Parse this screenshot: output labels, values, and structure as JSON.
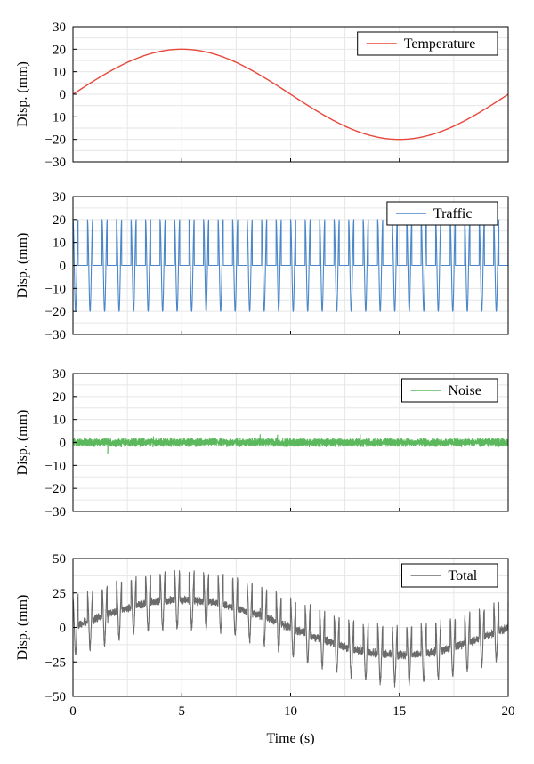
{
  "colors": {
    "temperature": "#e8473c",
    "traffic": "#4a86c8",
    "noise": "#5cb85c",
    "total": "#6b6b6b",
    "grid": "#e6e6e6",
    "axis": "#000000"
  },
  "chart_data": [
    {
      "type": "line",
      "title": "",
      "xlabel": "",
      "ylabel": "Disp. (mm)",
      "xlim": [
        0,
        20
      ],
      "ylim": [
        -30,
        30
      ],
      "xticks": [
        0,
        5,
        10,
        15,
        20
      ],
      "yticks": [
        -30,
        -20,
        -10,
        0,
        10,
        20,
        30
      ],
      "show_x_ticklabels": false,
      "grid": true,
      "legend": "top-right",
      "series": [
        {
          "name": "Temperature",
          "color_key": "temperature",
          "x": [
            0,
            1,
            2,
            3,
            4,
            5,
            6,
            7,
            8,
            9,
            10,
            11,
            12,
            13,
            14,
            15,
            16,
            17,
            18,
            19,
            20
          ],
          "y": [
            0,
            6.2,
            11.8,
            16.2,
            19.0,
            20.0,
            19.0,
            16.2,
            11.8,
            6.2,
            0,
            -6.2,
            -11.8,
            -16.2,
            -19.0,
            -20.0,
            -19.0,
            -16.2,
            -11.8,
            -6.2,
            0
          ]
        }
      ]
    },
    {
      "type": "line",
      "title": "",
      "xlabel": "",
      "ylabel": "Disp. (mm)",
      "xlim": [
        0,
        20
      ],
      "ylim": [
        -30,
        30
      ],
      "xticks": [
        0,
        5,
        10,
        15,
        20
      ],
      "yticks": [
        -30,
        -20,
        -10,
        0,
        10,
        20,
        30
      ],
      "show_x_ticklabels": false,
      "grid": true,
      "legend": "top-right",
      "series": [
        {
          "name": "Traffic",
          "color_key": "traffic",
          "x": [
            0,
            0.17,
            0.33,
            0.5,
            0.67,
            0.83,
            1.0,
            1.17,
            1.33,
            1.5,
            1.67,
            1.83,
            2.0
          ],
          "y": [
            20,
            0,
            -20,
            0,
            0,
            20,
            0,
            -20,
            0,
            0,
            20,
            0,
            -20
          ],
          "pattern": "period ~0.67 s, 30 cycles over 0-20 s, amplitude 20 mm with flat segments at 0"
        }
      ]
    },
    {
      "type": "line",
      "title": "",
      "xlabel": "",
      "ylabel": "Disp. (mm)",
      "xlim": [
        0,
        20
      ],
      "ylim": [
        -30,
        30
      ],
      "xticks": [
        0,
        5,
        10,
        15,
        20
      ],
      "yticks": [
        -30,
        -20,
        -10,
        0,
        10,
        20,
        30
      ],
      "show_x_ticklabels": false,
      "grid": true,
      "legend": "top-right",
      "series": [
        {
          "name": "Noise",
          "color_key": "noise",
          "x": [
            0,
            1,
            1.6,
            2,
            3,
            4,
            5,
            6,
            7,
            8,
            8.6,
            9,
            10,
            11,
            12,
            13,
            13.2,
            14,
            15,
            16,
            17,
            18,
            19,
            20
          ],
          "y": [
            1,
            -1,
            -5,
            1,
            -1,
            1,
            -1,
            1,
            0,
            1,
            3,
            -1,
            1,
            -1,
            0,
            1,
            3,
            -1,
            0,
            1,
            -1,
            1,
            0,
            1
          ],
          "pattern": "random noise, amplitude about ±3 mm"
        }
      ]
    },
    {
      "type": "line",
      "title": "",
      "xlabel": "Time (s)",
      "ylabel": "Disp. (mm)",
      "xlim": [
        0,
        20
      ],
      "ylim": [
        -50,
        50
      ],
      "xticks": [
        0,
        5,
        10,
        15,
        20
      ],
      "yticks": [
        -50,
        -25,
        0,
        25,
        50
      ],
      "show_x_ticklabels": true,
      "grid": true,
      "legend": "top-right",
      "series": [
        {
          "name": "Total",
          "color_key": "total",
          "x": [
            0,
            2.5,
            5,
            7.5,
            10,
            12.5,
            15,
            17.5,
            20
          ],
          "y": [
            0,
            14,
            20,
            14,
            0,
            -14,
            -20,
            -14,
            0
          ],
          "pattern": "sum of Temperature, Traffic and Noise; peaks near 40 at t≈5, troughs near -40 at t≈15"
        }
      ]
    }
  ]
}
